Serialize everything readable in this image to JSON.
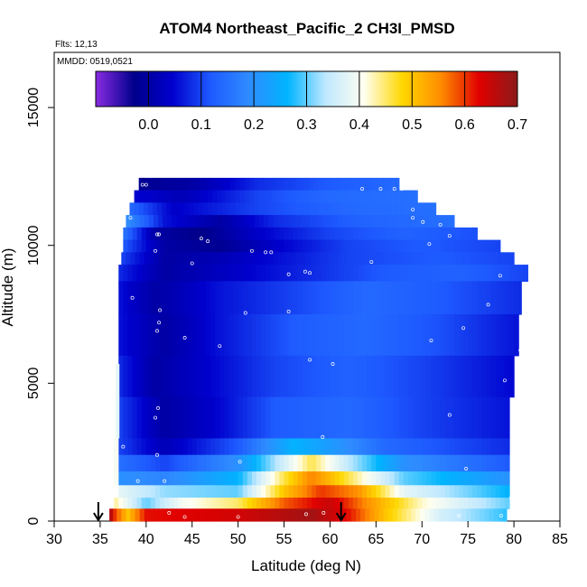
{
  "chart_data": {
    "type": "heatmap",
    "title": "ATOM4 Northeast_Pacific_2 CH3I_PMSD",
    "flights_note": "Flts: 12,13",
    "dates_note": "MMDD: 0519,0521",
    "xlabel": "Latitude (deg N)",
    "ylabel": "Altitude (m)",
    "xlim": [
      30,
      85
    ],
    "ylim": [
      0,
      17000
    ],
    "x_ticks": [
      30,
      35,
      40,
      45,
      50,
      55,
      60,
      65,
      70,
      75,
      80,
      85
    ],
    "y_ticks": [
      0,
      5000,
      10000,
      15000
    ],
    "colorbar": {
      "range": [
        -0.1,
        0.7
      ],
      "ticks": [
        0.0,
        0.1,
        0.2,
        0.3,
        0.4,
        0.5,
        0.6,
        0.7
      ],
      "stops": [
        "#8a2be2",
        "#00008b",
        "#0000cd",
        "#1e5aff",
        "#2f8cff",
        "#00b4ff",
        "#bfe8ff",
        "#fffff0",
        "#ffd700",
        "#ff8c00",
        "#e00000",
        "#8b1a1a"
      ]
    },
    "profile_endpoints_lat": [
      34.8,
      61.2
    ],
    "profile_rows": [
      {
        "alt_bottom": 12000,
        "alt_top": 12450,
        "lat_start": 39.2,
        "lat_end": 67.5,
        "nodes": [
          [
            39.2,
            -0.02
          ],
          [
            45,
            0.0
          ],
          [
            52,
            0.08
          ],
          [
            60,
            0.12
          ],
          [
            67.5,
            0.14
          ]
        ]
      },
      {
        "alt_bottom": 11550,
        "alt_top": 12000,
        "lat_start": 38.7,
        "lat_end": 69.5,
        "nodes": [
          [
            38.7,
            0.05
          ],
          [
            44,
            0.02
          ],
          [
            52,
            0.1
          ],
          [
            60,
            0.14
          ],
          [
            69.5,
            0.15
          ]
        ]
      },
      {
        "alt_bottom": 11100,
        "alt_top": 11550,
        "lat_start": 38.2,
        "lat_end": 71.5,
        "nodes": [
          [
            38.2,
            0.14
          ],
          [
            43,
            0.04
          ],
          [
            52,
            0.1
          ],
          [
            62,
            0.14
          ],
          [
            71.5,
            0.15
          ]
        ]
      },
      {
        "alt_bottom": 10650,
        "alt_top": 11100,
        "lat_start": 37.8,
        "lat_end": 73.5,
        "nodes": [
          [
            37.8,
            0.2
          ],
          [
            42,
            0.06
          ],
          [
            48,
            0.0
          ],
          [
            54,
            0.08
          ],
          [
            63,
            0.13
          ],
          [
            73.5,
            0.15
          ]
        ]
      },
      {
        "alt_bottom": 10200,
        "alt_top": 10650,
        "lat_start": 37.5,
        "lat_end": 76.0,
        "nodes": [
          [
            37.5,
            0.16
          ],
          [
            41,
            0.0
          ],
          [
            46,
            -0.03
          ],
          [
            52,
            0.04
          ],
          [
            60,
            0.1
          ],
          [
            68,
            0.13
          ],
          [
            76,
            0.11
          ]
        ]
      },
      {
        "alt_bottom": 9750,
        "alt_top": 10200,
        "lat_start": 37.5,
        "lat_end": 78.5,
        "nodes": [
          [
            37.5,
            0.12
          ],
          [
            42,
            0.0
          ],
          [
            48,
            -0.02
          ],
          [
            54,
            0.04
          ],
          [
            62,
            0.1
          ],
          [
            70,
            0.12
          ],
          [
            78.5,
            0.1
          ]
        ]
      },
      {
        "alt_bottom": 9300,
        "alt_top": 9750,
        "lat_start": 37.3,
        "lat_end": 80.0,
        "nodes": [
          [
            37.3,
            0.1
          ],
          [
            42,
            0.0
          ],
          [
            48,
            0.02
          ],
          [
            55,
            0.06
          ],
          [
            62,
            0.1
          ],
          [
            72,
            0.12
          ],
          [
            80,
            0.1
          ]
        ]
      },
      {
        "alt_bottom": 8700,
        "alt_top": 9300,
        "lat_start": 37.0,
        "lat_end": 81.5,
        "nodes": [
          [
            37.0,
            0.08
          ],
          [
            42,
            0.0
          ],
          [
            50,
            0.04
          ],
          [
            58,
            0.08
          ],
          [
            66,
            0.12
          ],
          [
            74,
            0.13
          ],
          [
            81.5,
            0.1
          ]
        ]
      },
      {
        "alt_bottom": 7500,
        "alt_top": 8700,
        "lat_start": 37.0,
        "lat_end": 80.8,
        "nodes": [
          [
            37.0,
            0.06
          ],
          [
            41,
            0.0
          ],
          [
            48,
            0.06
          ],
          [
            56,
            0.1
          ],
          [
            64,
            0.14
          ],
          [
            72,
            0.12
          ],
          [
            80.8,
            0.08
          ]
        ]
      },
      {
        "alt_bottom": 6000,
        "alt_top": 7500,
        "lat_start": 37.0,
        "lat_end": 80.5,
        "nodes": [
          [
            37.0,
            0.06
          ],
          [
            42,
            0.0
          ],
          [
            48,
            0.06
          ],
          [
            56,
            0.12
          ],
          [
            64,
            0.14
          ],
          [
            72,
            0.11
          ],
          [
            80.5,
            0.06
          ]
        ]
      },
      {
        "alt_bottom": 4500,
        "alt_top": 6000,
        "lat_start": 37.0,
        "lat_end": 80.0,
        "nodes": [
          [
            37.0,
            0.08
          ],
          [
            41,
            0.0
          ],
          [
            46,
            0.04
          ],
          [
            54,
            0.1
          ],
          [
            62,
            0.13
          ],
          [
            70,
            0.1
          ],
          [
            80,
            0.05
          ]
        ]
      },
      {
        "alt_bottom": 3000,
        "alt_top": 4500,
        "lat_start": 37.0,
        "lat_end": 79.5,
        "nodes": [
          [
            37.0,
            0.1
          ],
          [
            42,
            0.0
          ],
          [
            48,
            0.05
          ],
          [
            54,
            0.12
          ],
          [
            62,
            0.14
          ],
          [
            70,
            0.1
          ],
          [
            79.5,
            0.06
          ]
        ]
      },
      {
        "alt_bottom": 2400,
        "alt_top": 3000,
        "lat_start": 37.0,
        "lat_end": 79.5,
        "nodes": [
          [
            37.0,
            0.1
          ],
          [
            42,
            0.02
          ],
          [
            50,
            0.12
          ],
          [
            56,
            0.26
          ],
          [
            60,
            0.22
          ],
          [
            66,
            0.14
          ],
          [
            79.5,
            0.08
          ]
        ]
      },
      {
        "alt_bottom": 1800,
        "alt_top": 2400,
        "lat_start": 37.0,
        "lat_end": 79.5,
        "nodes": [
          [
            37.0,
            0.15
          ],
          [
            42,
            0.1
          ],
          [
            50,
            0.2
          ],
          [
            55,
            0.36
          ],
          [
            58,
            0.46
          ],
          [
            62,
            0.34
          ],
          [
            68,
            0.2
          ],
          [
            79.5,
            0.12
          ]
        ]
      },
      {
        "alt_bottom": 1300,
        "alt_top": 1800,
        "lat_start": 37.0,
        "lat_end": 79.5,
        "nodes": [
          [
            37.0,
            0.2
          ],
          [
            42,
            0.18
          ],
          [
            50,
            0.26
          ],
          [
            55,
            0.46
          ],
          [
            58,
            0.56
          ],
          [
            62,
            0.46
          ],
          [
            68,
            0.3
          ],
          [
            79.5,
            0.2
          ]
        ]
      },
      {
        "alt_bottom": 850,
        "alt_top": 1300,
        "lat_start": 37.0,
        "lat_end": 79.5,
        "nodes": [
          [
            37.0,
            0.38
          ],
          [
            42,
            0.32
          ],
          [
            50,
            0.3
          ],
          [
            55,
            0.5
          ],
          [
            59,
            0.6
          ],
          [
            63,
            0.55
          ],
          [
            68,
            0.38
          ],
          [
            79.5,
            0.26
          ]
        ]
      },
      {
        "alt_bottom": 450,
        "alt_top": 850,
        "lat_start": 36.5,
        "lat_end": 79.5,
        "nodes": [
          [
            36.5,
            0.44
          ],
          [
            40,
            0.3
          ],
          [
            44,
            0.4
          ],
          [
            50,
            0.45
          ],
          [
            55,
            0.58
          ],
          [
            60,
            0.65
          ],
          [
            64,
            0.55
          ],
          [
            70,
            0.42
          ],
          [
            79.5,
            0.3
          ]
        ]
      },
      {
        "alt_bottom": 0,
        "alt_top": 450,
        "lat_start": 36.3,
        "lat_end": 79.2,
        "nodes": [
          [
            36.3,
            0.62
          ],
          [
            38,
            0.5
          ],
          [
            40,
            0.62
          ],
          [
            50,
            0.64
          ],
          [
            58,
            0.68
          ],
          [
            62,
            0.62
          ],
          [
            66,
            0.5
          ],
          [
            72,
            0.36
          ],
          [
            79.2,
            0.28
          ]
        ]
      }
    ],
    "side_columns": [
      {
        "lat_start": 36.5,
        "lat_end": 37.0,
        "alt_bottom": 1300,
        "alt_top": 3000,
        "value": 0.4
      },
      {
        "lat_start": 36.7,
        "lat_end": 37.1,
        "alt_bottom": 3000,
        "alt_top": 5700,
        "value": 0.38
      },
      {
        "lat_start": 36.0,
        "lat_end": 36.4,
        "alt_bottom": 0,
        "alt_top": 450,
        "value": 0.66
      }
    ],
    "sample_points": [
      [
        39.6,
        12200
      ],
      [
        40.0,
        12200
      ],
      [
        63.5,
        12050
      ],
      [
        65.5,
        12050
      ],
      [
        67.0,
        12050
      ],
      [
        67.8,
        12050
      ],
      [
        69.0,
        11300
      ],
      [
        69.0,
        11000
      ],
      [
        70.1,
        10850
      ],
      [
        72.0,
        10750
      ],
      [
        38.3,
        11000
      ],
      [
        41.2,
        10400
      ],
      [
        41.4,
        10400
      ],
      [
        46.0,
        10250
      ],
      [
        46.7,
        10150
      ],
      [
        41.0,
        9800
      ],
      [
        51.5,
        9800
      ],
      [
        53.0,
        9750
      ],
      [
        53.6,
        9750
      ],
      [
        64.5,
        9400
      ],
      [
        45.0,
        9350
      ],
      [
        70.8,
        10050
      ],
      [
        73.0,
        10350
      ],
      [
        57.3,
        9050
      ],
      [
        57.8,
        9000
      ],
      [
        55.5,
        8950
      ],
      [
        78.5,
        8900
      ],
      [
        82.0,
        9000
      ],
      [
        38.5,
        8100
      ],
      [
        41.5,
        7650
      ],
      [
        50.8,
        7550
      ],
      [
        55.5,
        7600
      ],
      [
        41.4,
        7200
      ],
      [
        41.2,
        6900
      ],
      [
        44.2,
        6650
      ],
      [
        48.0,
        6350
      ],
      [
        71.0,
        6550
      ],
      [
        74.5,
        7000
      ],
      [
        77.2,
        7850
      ],
      [
        80.7,
        6200
      ],
      [
        57.8,
        5850
      ],
      [
        60.3,
        5700
      ],
      [
        79.0,
        5100
      ],
      [
        41.3,
        4100
      ],
      [
        41.0,
        3750
      ],
      [
        73.0,
        3850
      ],
      [
        59.2,
        3050
      ],
      [
        37.5,
        2700
      ],
      [
        41.2,
        2400
      ],
      [
        50.2,
        2150
      ],
      [
        74.8,
        1900
      ],
      [
        39.1,
        1450
      ],
      [
        42.0,
        1450
      ],
      [
        79.7,
        850
      ],
      [
        42.5,
        300
      ],
      [
        59.3,
        300
      ],
      [
        44.2,
        150
      ],
      [
        50.0,
        150
      ],
      [
        57.4,
        250
      ],
      [
        74.0,
        200
      ],
      [
        78.6,
        200
      ]
    ]
  }
}
